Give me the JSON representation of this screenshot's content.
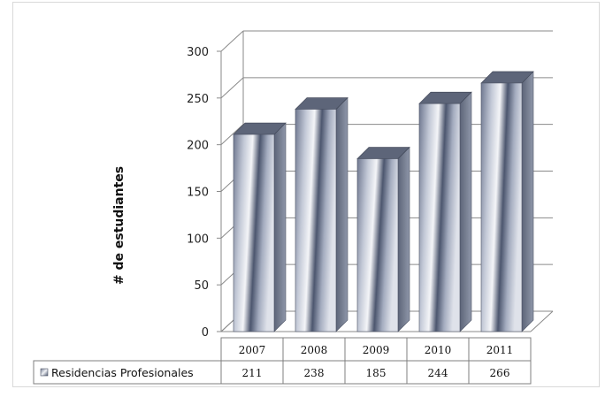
{
  "chart_data": {
    "type": "bar",
    "title": "",
    "xlabel": "",
    "ylabel": "# de estudiantes",
    "categories": [
      "2007",
      "2008",
      "2009",
      "2010",
      "2011"
    ],
    "series": [
      {
        "name": "Residencias Profesionales",
        "values": [
          211,
          238,
          185,
          244,
          266
        ]
      }
    ],
    "ylim": [
      0,
      300
    ],
    "yticks": [
      "0",
      "50",
      "100",
      "150",
      "200",
      "250",
      "300"
    ],
    "grid": true,
    "data_table": true,
    "three_d": true,
    "bar_color": "#8f98ad"
  }
}
